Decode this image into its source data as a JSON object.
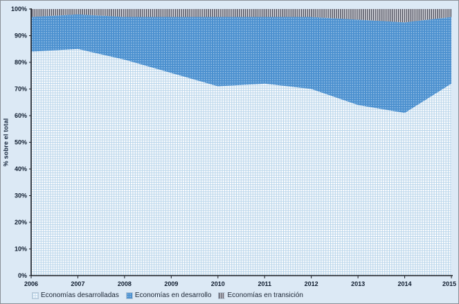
{
  "chart": {
    "y_axis_title": "% sobre el total",
    "background_color": "#dce9f5",
    "colors": {
      "axis": "#1a1c22",
      "tick_text": "#0f1c2e",
      "developed_bg": "#fdfdfe",
      "developed_grid": "#b7d4ea",
      "developing_bg": "#4b90cf",
      "developing_dot": "#cde2f4",
      "transition_dark": "#454654",
      "transition_light": "#ebedf2"
    }
  },
  "chart_data": {
    "type": "area",
    "stacked": true,
    "title": "",
    "xlabel": "",
    "ylabel": "% sobre el total",
    "ylim": [
      0,
      100
    ],
    "x": [
      2006,
      2007,
      2008,
      2009,
      2010,
      2011,
      2012,
      2013,
      2014,
      2015
    ],
    "x_ticks": [
      "2006",
      "2007",
      "2008",
      "2009",
      "2010",
      "2011",
      "2012",
      "2013",
      "2014",
      "2015"
    ],
    "y_ticks": [
      "0%",
      "10%",
      "20%",
      "30%",
      "40%",
      "50%",
      "60%",
      "70%",
      "80%",
      "90%",
      "100%"
    ],
    "grid": false,
    "legend_position": "bottom",
    "series": [
      {
        "name": "Economías desarrolladas",
        "pattern": "grid",
        "values": [
          84,
          85,
          81,
          76,
          71,
          72,
          70,
          64,
          61,
          72
        ]
      },
      {
        "name": "Economías en desarrollo",
        "pattern": "dots",
        "values": [
          13,
          13,
          16,
          21,
          26,
          25,
          27,
          32,
          34,
          25
        ]
      },
      {
        "name": "Economías en transición",
        "pattern": "stripes",
        "values": [
          3,
          2,
          3,
          3,
          3,
          3,
          3,
          4,
          5,
          3
        ]
      }
    ]
  },
  "legend": {
    "items": [
      {
        "label": "Economías desarrolladas"
      },
      {
        "label": "Economías en desarrollo"
      },
      {
        "label": "Economías en transición"
      }
    ]
  }
}
